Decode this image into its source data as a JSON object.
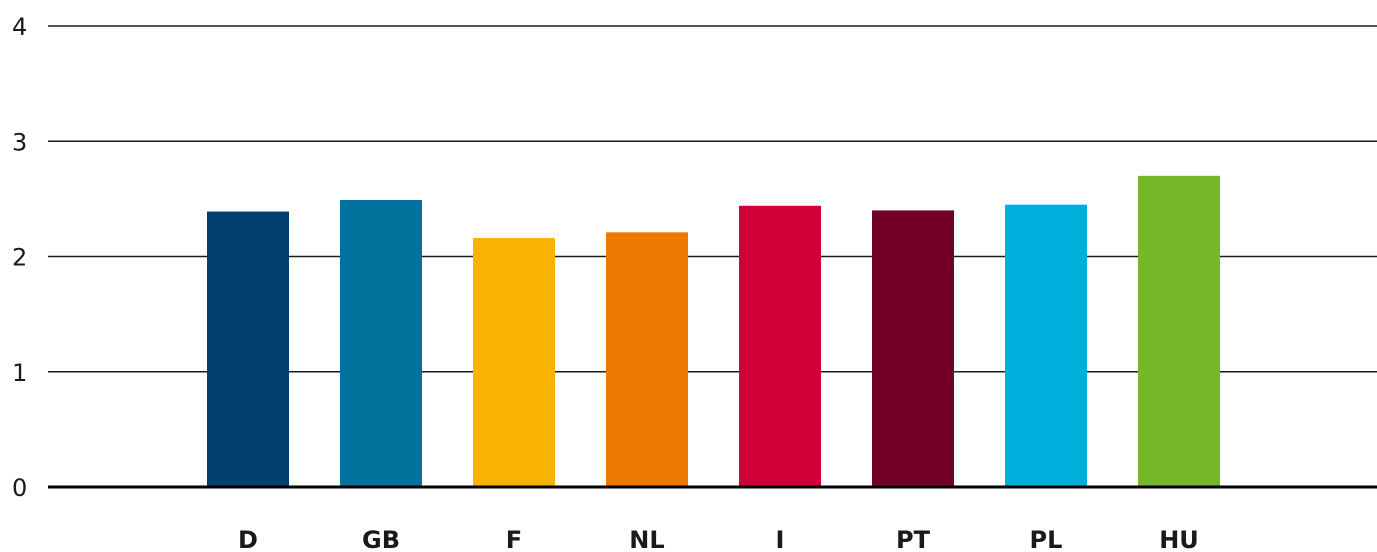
{
  "chart_data": {
    "type": "bar",
    "categories": [
      "D",
      "GB",
      "F",
      "NL",
      "I",
      "PT",
      "PL",
      "HU"
    ],
    "values": [
      2.39,
      2.49,
      2.16,
      2.21,
      2.44,
      2.4,
      2.45,
      2.7
    ],
    "colors": [
      "#003f6f",
      "#00739d",
      "#f8b400",
      "#ec7a00",
      "#d00037",
      "#720026",
      "#00aedb",
      "#76b82a"
    ],
    "yticks": [
      "0",
      "1",
      "2",
      "3",
      "4"
    ],
    "ylim": [
      0,
      4
    ],
    "grid": true,
    "title": "",
    "xlabel": "",
    "ylabel": ""
  }
}
